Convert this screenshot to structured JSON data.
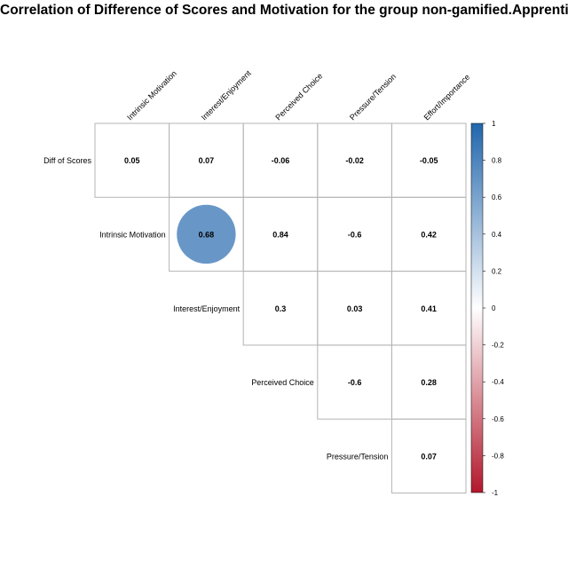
{
  "chart_data": {
    "type": "heatmap",
    "title": "Correlation of Difference of Scores and Motivation for the group non-gamified.Apprentice",
    "columns": [
      "Intrinsic Motivation",
      "Interest/Enjoyment",
      "Perceived Choice",
      "Pressure/Tension",
      "Effort/Importance"
    ],
    "rows": [
      "Diff of Scores",
      "Intrinsic Motivation",
      "Interest/Enjoyment",
      "Perceived Choice",
      "Pressure/Tension"
    ],
    "circles": [
      [
        false,
        false,
        false,
        false,
        false
      ],
      [
        true,
        true,
        false,
        false,
        false
      ],
      [
        null,
        false,
        false,
        false,
        false
      ],
      [
        null,
        null,
        true,
        false,
        false
      ],
      [
        null,
        null,
        null,
        false,
        false
      ]
    ],
    "values": [
      [
        0.05,
        0.07,
        -0.06,
        -0.02,
        -0.05
      ],
      [
        null,
        0.68,
        0.84,
        -0.6,
        0.42
      ],
      [
        null,
        null,
        0.3,
        0.03,
        0.41
      ],
      [
        null,
        null,
        null,
        -0.6,
        0.28
      ],
      [
        null,
        null,
        null,
        null,
        0.07
      ]
    ],
    "color_scale": {
      "min": -1,
      "max": 1,
      "negative": "#B2182B",
      "mid": "#FFFFFF",
      "positive": "#2166AC"
    },
    "colorbar_ticks": [
      "1",
      "0.8",
      "0.6",
      "0.4",
      "0.2",
      "0",
      "-0.2",
      "-0.4",
      "-0.6",
      "-0.8",
      "-1"
    ],
    "grid": true,
    "legend": "right"
  }
}
